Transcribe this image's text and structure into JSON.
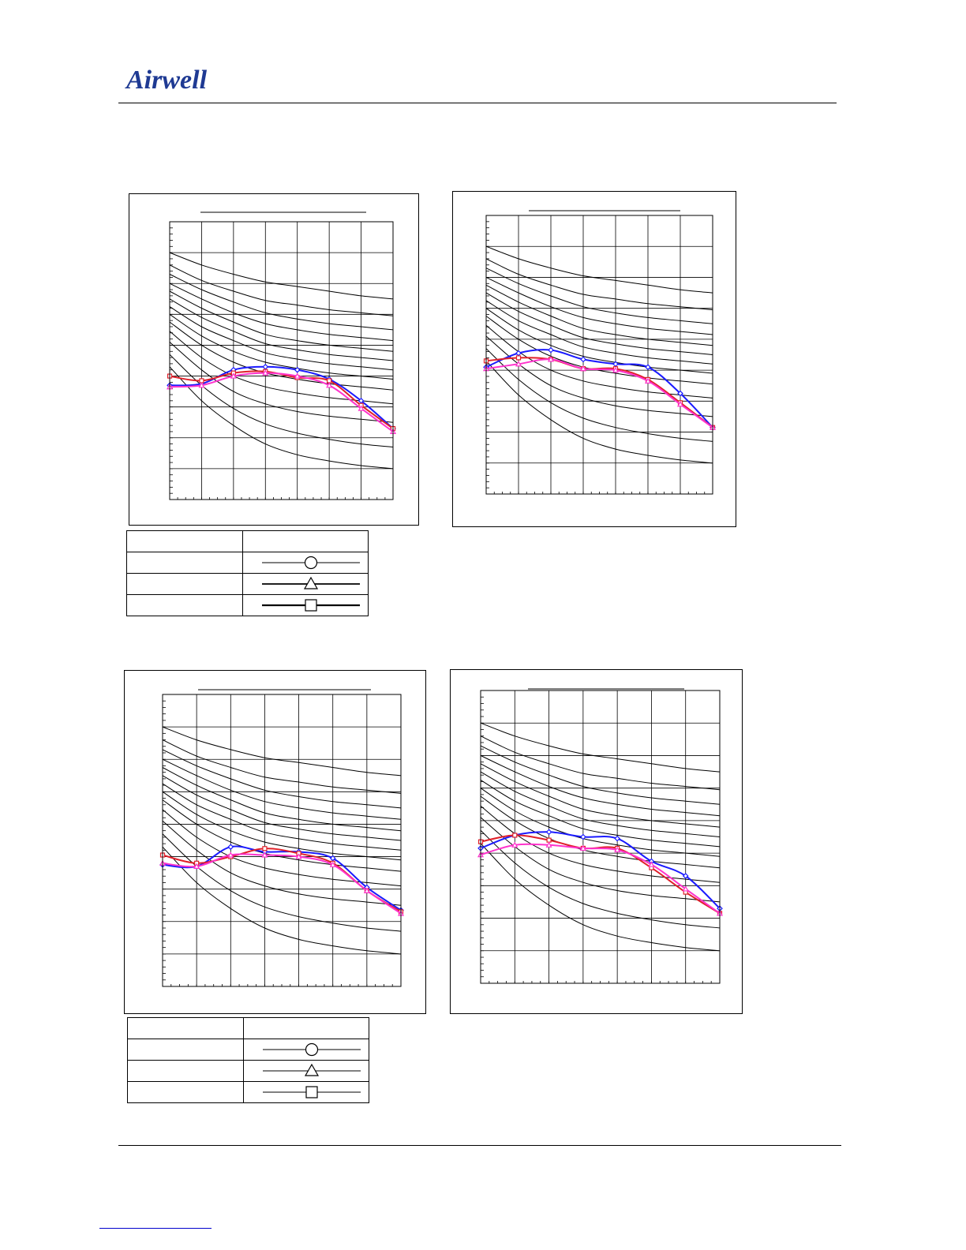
{
  "logo": {
    "text": "Airwell",
    "color": "#1f3a93"
  },
  "colors": {
    "blue": "#1a1aff",
    "red": "#e0202a",
    "magenta": "#ff33cc",
    "grid": "#000000"
  },
  "legend_symbols": [
    "circle",
    "triangle",
    "square"
  ],
  "chart_data": [
    {
      "type": "line",
      "title": "",
      "xlabel": "",
      "ylabel": "",
      "xlim": [
        0,
        7
      ],
      "ylim": [
        0,
        9
      ],
      "grid": true,
      "reference_curves": [
        [
          8,
          7.6,
          7.3,
          7.05,
          6.9,
          6.75,
          6.6,
          6.5
        ],
        [
          7.6,
          7.1,
          6.75,
          6.45,
          6.3,
          6.15,
          6.05,
          5.95
        ],
        [
          7.3,
          6.8,
          6.4,
          6.05,
          5.85,
          5.7,
          5.6,
          5.5
        ],
        [
          7.0,
          6.5,
          6.05,
          5.7,
          5.5,
          5.35,
          5.25,
          5.15
        ],
        [
          6.75,
          6.2,
          5.75,
          5.35,
          5.15,
          5.0,
          4.9,
          4.8
        ],
        [
          6.5,
          5.9,
          5.45,
          5.05,
          4.85,
          4.7,
          4.6,
          4.5
        ],
        [
          6.25,
          5.6,
          5.15,
          4.75,
          4.55,
          4.4,
          4.3,
          4.2
        ],
        [
          6.0,
          5.3,
          4.8,
          4.45,
          4.25,
          4.1,
          4.0,
          3.9
        ],
        [
          5.75,
          5.0,
          4.45,
          4.1,
          3.9,
          3.75,
          3.65,
          3.55
        ],
        [
          5.45,
          4.6,
          4.0,
          3.65,
          3.45,
          3.3,
          3.2,
          3.1
        ],
        [
          5.1,
          4.2,
          3.5,
          3.1,
          2.85,
          2.7,
          2.6,
          2.5
        ],
        [
          4.7,
          3.7,
          2.95,
          2.45,
          2.15,
          1.95,
          1.8,
          1.7
        ],
        [
          4.3,
          3.2,
          2.4,
          1.8,
          1.45,
          1.25,
          1.1,
          1.0
        ]
      ],
      "series": [
        {
          "color": "#1a1aff",
          "marker": "diamond",
          "values": [
            3.7,
            3.75,
            4.2,
            4.3,
            4.2,
            3.9,
            3.2,
            2.3
          ]
        },
        {
          "color": "#e0202a",
          "marker": "square",
          "values": [
            4.0,
            3.85,
            4.1,
            4.15,
            3.95,
            3.85,
            3.05,
            2.3
          ]
        },
        {
          "color": "#ff33cc",
          "marker": "triangle",
          "values": [
            3.65,
            3.7,
            4.0,
            4.1,
            4.0,
            3.7,
            2.95,
            2.2
          ]
        }
      ]
    },
    {
      "type": "line",
      "title": "",
      "xlabel": "",
      "ylabel": "",
      "xlim": [
        0,
        7
      ],
      "ylim": [
        0,
        9
      ],
      "grid": true,
      "reference_curves": [
        [
          8,
          7.6,
          7.3,
          7.05,
          6.9,
          6.75,
          6.6,
          6.5
        ],
        [
          7.6,
          7.1,
          6.75,
          6.45,
          6.3,
          6.15,
          6.05,
          5.95
        ],
        [
          7.3,
          6.8,
          6.4,
          6.05,
          5.85,
          5.7,
          5.6,
          5.5
        ],
        [
          7.0,
          6.5,
          6.05,
          5.7,
          5.5,
          5.35,
          5.25,
          5.15
        ],
        [
          6.75,
          6.2,
          5.75,
          5.35,
          5.15,
          5.0,
          4.9,
          4.8
        ],
        [
          6.5,
          5.9,
          5.45,
          5.05,
          4.85,
          4.7,
          4.6,
          4.5
        ],
        [
          6.25,
          5.6,
          5.15,
          4.75,
          4.55,
          4.4,
          4.3,
          4.2
        ],
        [
          6.0,
          5.3,
          4.8,
          4.45,
          4.25,
          4.1,
          4.0,
          3.9
        ],
        [
          5.75,
          5.0,
          4.45,
          4.1,
          3.9,
          3.75,
          3.65,
          3.55
        ],
        [
          5.45,
          4.6,
          4.0,
          3.65,
          3.45,
          3.3,
          3.2,
          3.1
        ],
        [
          5.1,
          4.2,
          3.5,
          3.1,
          2.85,
          2.7,
          2.6,
          2.5
        ],
        [
          4.7,
          3.7,
          2.95,
          2.45,
          2.15,
          1.95,
          1.8,
          1.7
        ],
        [
          4.3,
          3.2,
          2.4,
          1.8,
          1.45,
          1.25,
          1.1,
          1.0
        ]
      ],
      "series": [
        {
          "color": "#1a1aff",
          "marker": "diamond",
          "values": [
            4.1,
            4.55,
            4.65,
            4.35,
            4.2,
            4.1,
            3.25,
            2.15
          ]
        },
        {
          "color": "#e0202a",
          "marker": "square",
          "values": [
            4.3,
            4.4,
            4.35,
            4.05,
            4.05,
            3.7,
            2.95,
            2.15
          ]
        },
        {
          "color": "#ff33cc",
          "marker": "triangle",
          "values": [
            4.05,
            4.2,
            4.35,
            4.05,
            4.0,
            3.65,
            2.9,
            2.15
          ]
        }
      ]
    },
    {
      "type": "line",
      "title": "",
      "xlabel": "",
      "ylabel": "",
      "xlim": [
        0,
        7
      ],
      "ylim": [
        0,
        9
      ],
      "grid": true,
      "reference_curves": [
        [
          8,
          7.6,
          7.3,
          7.05,
          6.9,
          6.75,
          6.6,
          6.5
        ],
        [
          7.6,
          7.1,
          6.75,
          6.45,
          6.3,
          6.15,
          6.05,
          5.95
        ],
        [
          7.3,
          6.8,
          6.4,
          6.05,
          5.85,
          5.7,
          5.6,
          5.5
        ],
        [
          7.0,
          6.5,
          6.05,
          5.7,
          5.5,
          5.35,
          5.25,
          5.15
        ],
        [
          6.75,
          6.2,
          5.75,
          5.35,
          5.15,
          5.0,
          4.9,
          4.8
        ],
        [
          6.5,
          5.9,
          5.45,
          5.05,
          4.85,
          4.7,
          4.6,
          4.5
        ],
        [
          6.25,
          5.6,
          5.15,
          4.75,
          4.55,
          4.4,
          4.3,
          4.2
        ],
        [
          6.0,
          5.3,
          4.8,
          4.45,
          4.25,
          4.1,
          4.0,
          3.9
        ],
        [
          5.75,
          5.0,
          4.45,
          4.1,
          3.9,
          3.75,
          3.65,
          3.55
        ],
        [
          5.45,
          4.6,
          4.0,
          3.65,
          3.45,
          3.3,
          3.2,
          3.1
        ],
        [
          5.1,
          4.2,
          3.5,
          3.1,
          2.85,
          2.7,
          2.6,
          2.5
        ],
        [
          4.7,
          3.7,
          2.95,
          2.45,
          2.15,
          1.95,
          1.8,
          1.7
        ],
        [
          4.3,
          3.2,
          2.4,
          1.8,
          1.45,
          1.25,
          1.1,
          1.0
        ]
      ],
      "series": [
        {
          "color": "#1a1aff",
          "marker": "diamond",
          "values": [
            3.75,
            3.7,
            4.3,
            4.15,
            4.15,
            3.95,
            3.05,
            2.35
          ]
        },
        {
          "color": "#e0202a",
          "marker": "square",
          "values": [
            4.05,
            3.8,
            4.0,
            4.25,
            4.1,
            3.8,
            2.95,
            2.3
          ]
        },
        {
          "color": "#ff33cc",
          "marker": "triangle",
          "values": [
            3.8,
            3.7,
            4.05,
            4.05,
            4.0,
            3.75,
            2.95,
            2.25
          ]
        }
      ]
    },
    {
      "type": "line",
      "title": "",
      "xlabel": "",
      "ylabel": "",
      "xlim": [
        0,
        7
      ],
      "ylim": [
        0,
        9
      ],
      "grid": true,
      "reference_curves": [
        [
          8,
          7.6,
          7.3,
          7.05,
          6.9,
          6.75,
          6.6,
          6.5
        ],
        [
          7.6,
          7.1,
          6.75,
          6.45,
          6.3,
          6.15,
          6.05,
          5.95
        ],
        [
          7.3,
          6.8,
          6.4,
          6.05,
          5.85,
          5.7,
          5.6,
          5.5
        ],
        [
          7.0,
          6.5,
          6.05,
          5.7,
          5.5,
          5.35,
          5.25,
          5.15
        ],
        [
          6.75,
          6.2,
          5.75,
          5.35,
          5.15,
          5.0,
          4.9,
          4.8
        ],
        [
          6.5,
          5.9,
          5.45,
          5.05,
          4.85,
          4.7,
          4.6,
          4.5
        ],
        [
          6.25,
          5.6,
          5.15,
          4.75,
          4.55,
          4.4,
          4.3,
          4.2
        ],
        [
          6.0,
          5.3,
          4.8,
          4.45,
          4.25,
          4.1,
          4.0,
          3.9
        ],
        [
          5.75,
          5.0,
          4.45,
          4.1,
          3.9,
          3.75,
          3.65,
          3.55
        ],
        [
          5.45,
          4.6,
          4.0,
          3.65,
          3.45,
          3.3,
          3.2,
          3.1
        ],
        [
          5.1,
          4.2,
          3.5,
          3.1,
          2.85,
          2.7,
          2.6,
          2.5
        ],
        [
          4.7,
          3.7,
          2.95,
          2.45,
          2.15,
          1.95,
          1.8,
          1.7
        ],
        [
          4.3,
          3.2,
          2.4,
          1.8,
          1.45,
          1.25,
          1.1,
          1.0
        ]
      ],
      "series": [
        {
          "color": "#1a1aff",
          "marker": "diamond",
          "values": [
            4.15,
            4.55,
            4.65,
            4.5,
            4.45,
            3.75,
            3.3,
            2.3
          ]
        },
        {
          "color": "#e0202a",
          "marker": "square",
          "values": [
            4.35,
            4.55,
            4.4,
            4.15,
            4.15,
            3.55,
            2.8,
            2.15
          ]
        },
        {
          "color": "#ff33cc",
          "marker": "triangle",
          "values": [
            3.95,
            4.25,
            4.25,
            4.15,
            4.1,
            3.65,
            2.9,
            2.15
          ]
        }
      ]
    }
  ]
}
